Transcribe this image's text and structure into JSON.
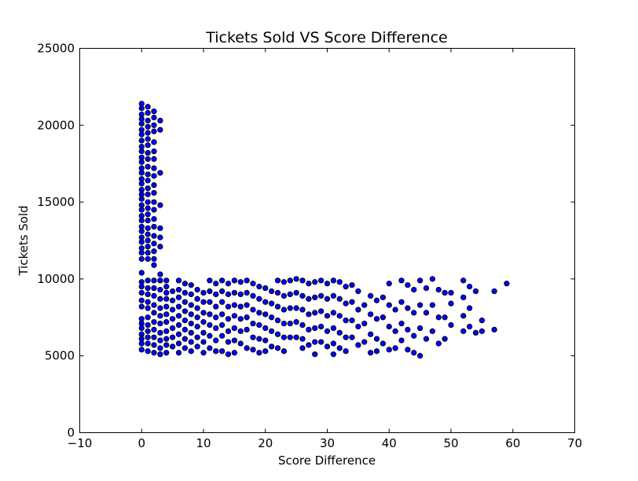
{
  "chart_data": {
    "type": "scatter",
    "title": "Tickets Sold VS Score Difference",
    "xlabel": "Score Difference",
    "ylabel": "Tickets Sold",
    "xlim": [
      -10,
      70
    ],
    "ylim": [
      0,
      25000
    ],
    "xticks": [
      -10,
      0,
      10,
      20,
      30,
      40,
      50,
      60,
      70
    ],
    "yticks": [
      0,
      5000,
      10000,
      15000,
      20000,
      25000
    ],
    "xtick_labels": [
      "−10",
      "0",
      "10",
      "20",
      "30",
      "40",
      "50",
      "60",
      "70"
    ],
    "ytick_labels": [
      "0",
      "5000",
      "10000",
      "15000",
      "20000",
      "25000"
    ],
    "grid": false,
    "marker_color": "#0000ff",
    "marker_edge": "#000000",
    "points": [
      [
        0,
        21400
      ],
      [
        0,
        21100
      ],
      [
        0,
        20700
      ],
      [
        0,
        20400
      ],
      [
        0,
        20100
      ],
      [
        0,
        19700
      ],
      [
        0,
        19400
      ],
      [
        0,
        19000
      ],
      [
        0,
        18600
      ],
      [
        0,
        18300
      ],
      [
        0,
        17900
      ],
      [
        0,
        17600
      ],
      [
        0,
        17200
      ],
      [
        0,
        16900
      ],
      [
        0,
        16500
      ],
      [
        0,
        16200
      ],
      [
        0,
        15800
      ],
      [
        0,
        15500
      ],
      [
        0,
        15200
      ],
      [
        0,
        14800
      ],
      [
        0,
        14500
      ],
      [
        0,
        14100
      ],
      [
        0,
        13800
      ],
      [
        0,
        13400
      ],
      [
        0,
        13100
      ],
      [
        0,
        12700
      ],
      [
        0,
        12400
      ],
      [
        0,
        12000
      ],
      [
        0,
        11700
      ],
      [
        0,
        11300
      ],
      [
        0,
        10400
      ],
      [
        0,
        9800
      ],
      [
        0,
        9500
      ],
      [
        0,
        9100
      ],
      [
        0,
        8600
      ],
      [
        0,
        8200
      ],
      [
        0,
        7400
      ],
      [
        0,
        7100
      ],
      [
        0,
        6800
      ],
      [
        0,
        6400
      ],
      [
        0,
        6100
      ],
      [
        0,
        5800
      ],
      [
        0,
        5400
      ],
      [
        1,
        21200
      ],
      [
        1,
        20800
      ],
      [
        1,
        20300
      ],
      [
        1,
        19900
      ],
      [
        1,
        19500
      ],
      [
        1,
        19100
      ],
      [
        1,
        18700
      ],
      [
        1,
        18200
      ],
      [
        1,
        17800
      ],
      [
        1,
        17300
      ],
      [
        1,
        16800
      ],
      [
        1,
        16400
      ],
      [
        1,
        15900
      ],
      [
        1,
        15500
      ],
      [
        1,
        15000
      ],
      [
        1,
        14600
      ],
      [
        1,
        14200
      ],
      [
        1,
        13800
      ],
      [
        1,
        13300
      ],
      [
        1,
        12900
      ],
      [
        1,
        12500
      ],
      [
        1,
        12100
      ],
      [
        1,
        11700
      ],
      [
        1,
        11300
      ],
      [
        1,
        9900
      ],
      [
        1,
        9400
      ],
      [
        1,
        9000
      ],
      [
        1,
        8500
      ],
      [
        1,
        8100
      ],
      [
        1,
        7500
      ],
      [
        1,
        7000
      ],
      [
        1,
        6600
      ],
      [
        1,
        6200
      ],
      [
        1,
        5800
      ],
      [
        1,
        5300
      ],
      [
        2,
        20900
      ],
      [
        2,
        20500
      ],
      [
        2,
        20000
      ],
      [
        2,
        19600
      ],
      [
        2,
        18900
      ],
      [
        2,
        18300
      ],
      [
        2,
        17800
      ],
      [
        2,
        17200
      ],
      [
        2,
        16700
      ],
      [
        2,
        16100
      ],
      [
        2,
        15600
      ],
      [
        2,
        15000
      ],
      [
        2,
        14500
      ],
      [
        2,
        13900
      ],
      [
        2,
        13400
      ],
      [
        2,
        12800
      ],
      [
        2,
        12300
      ],
      [
        2,
        11800
      ],
      [
        2,
        11300
      ],
      [
        2,
        10900
      ],
      [
        2,
        9900
      ],
      [
        2,
        9400
      ],
      [
        2,
        8900
      ],
      [
        2,
        8300
      ],
      [
        2,
        7800
      ],
      [
        2,
        7200
      ],
      [
        2,
        6700
      ],
      [
        2,
        6200
      ],
      [
        2,
        5700
      ],
      [
        2,
        5200
      ],
      [
        3,
        20300
      ],
      [
        3,
        19700
      ],
      [
        3,
        16900
      ],
      [
        3,
        14800
      ],
      [
        3,
        13300
      ],
      [
        3,
        12700
      ],
      [
        3,
        12100
      ],
      [
        3,
        10300
      ],
      [
        3,
        9900
      ],
      [
        3,
        9300
      ],
      [
        3,
        8700
      ],
      [
        3,
        8100
      ],
      [
        3,
        7600
      ],
      [
        3,
        7100
      ],
      [
        3,
        6500
      ],
      [
        3,
        6000
      ],
      [
        3,
        5500
      ],
      [
        3,
        5100
      ],
      [
        4,
        9900
      ],
      [
        4,
        9500
      ],
      [
        4,
        9100
      ],
      [
        4,
        8700
      ],
      [
        4,
        8200
      ],
      [
        4,
        7700
      ],
      [
        4,
        7200
      ],
      [
        4,
        6600
      ],
      [
        4,
        6100
      ],
      [
        4,
        5700
      ],
      [
        4,
        5200
      ],
      [
        5,
        9200
      ],
      [
        5,
        8600
      ],
      [
        5,
        8000
      ],
      [
        5,
        7400
      ],
      [
        5,
        6800
      ],
      [
        5,
        6200
      ],
      [
        5,
        5600
      ],
      [
        6,
        9900
      ],
      [
        6,
        9300
      ],
      [
        6,
        8800
      ],
      [
        6,
        8200
      ],
      [
        6,
        7600
      ],
      [
        6,
        7000
      ],
      [
        6,
        6400
      ],
      [
        6,
        5800
      ],
      [
        6,
        5200
      ],
      [
        7,
        9700
      ],
      [
        7,
        9100
      ],
      [
        7,
        8500
      ],
      [
        7,
        7900
      ],
      [
        7,
        7300
      ],
      [
        7,
        6700
      ],
      [
        7,
        6100
      ],
      [
        7,
        5500
      ],
      [
        8,
        9600
      ],
      [
        8,
        9000
      ],
      [
        8,
        8300
      ],
      [
        8,
        7700
      ],
      [
        8,
        7100
      ],
      [
        8,
        6500
      ],
      [
        8,
        5900
      ],
      [
        8,
        5300
      ],
      [
        9,
        9300
      ],
      [
        9,
        8700
      ],
      [
        9,
        8100
      ],
      [
        9,
        7500
      ],
      [
        9,
        6900
      ],
      [
        9,
        6200
      ],
      [
        9,
        5600
      ],
      [
        10,
        9100
      ],
      [
        10,
        8500
      ],
      [
        10,
        7800
      ],
      [
        10,
        7200
      ],
      [
        10,
        6500
      ],
      [
        10,
        5900
      ],
      [
        10,
        5200
      ],
      [
        11,
        9900
      ],
      [
        11,
        9200
      ],
      [
        11,
        8500
      ],
      [
        11,
        7700
      ],
      [
        11,
        7000
      ],
      [
        11,
        6300
      ],
      [
        11,
        5500
      ],
      [
        12,
        9700
      ],
      [
        12,
        9000
      ],
      [
        12,
        8200
      ],
      [
        12,
        7500
      ],
      [
        12,
        6800
      ],
      [
        12,
        6000
      ],
      [
        12,
        5300
      ],
      [
        13,
        9900
      ],
      [
        13,
        9200
      ],
      [
        13,
        8500
      ],
      [
        13,
        7700
      ],
      [
        13,
        7000
      ],
      [
        13,
        6300
      ],
      [
        13,
        5300
      ],
      [
        14,
        9700
      ],
      [
        14,
        9000
      ],
      [
        14,
        8200
      ],
      [
        14,
        7400
      ],
      [
        14,
        6600
      ],
      [
        14,
        5900
      ],
      [
        14,
        5100
      ],
      [
        15,
        9900
      ],
      [
        15,
        9100
      ],
      [
        15,
        8300
      ],
      [
        15,
        7600
      ],
      [
        15,
        6800
      ],
      [
        15,
        6000
      ],
      [
        15,
        5200
      ],
      [
        16,
        9800
      ],
      [
        16,
        9000
      ],
      [
        16,
        8200
      ],
      [
        16,
        7400
      ],
      [
        16,
        6600
      ],
      [
        16,
        5800
      ],
      [
        17,
        9900
      ],
      [
        17,
        9100
      ],
      [
        17,
        8300
      ],
      [
        17,
        7500
      ],
      [
        17,
        6700
      ],
      [
        17,
        5500
      ],
      [
        18,
        9700
      ],
      [
        18,
        8900
      ],
      [
        18,
        8000
      ],
      [
        18,
        7100
      ],
      [
        18,
        6200
      ],
      [
        18,
        5400
      ],
      [
        19,
        9500
      ],
      [
        19,
        8700
      ],
      [
        19,
        7800
      ],
      [
        19,
        7000
      ],
      [
        19,
        6100
      ],
      [
        19,
        5200
      ],
      [
        20,
        9400
      ],
      [
        20,
        8500
      ],
      [
        20,
        7700
      ],
      [
        20,
        6800
      ],
      [
        20,
        6000
      ],
      [
        20,
        5300
      ],
      [
        21,
        9200
      ],
      [
        21,
        8400
      ],
      [
        21,
        7500
      ],
      [
        21,
        6600
      ],
      [
        21,
        5600
      ],
      [
        22,
        9900
      ],
      [
        22,
        9100
      ],
      [
        22,
        8200
      ],
      [
        22,
        7300
      ],
      [
        22,
        6400
      ],
      [
        22,
        5500
      ],
      [
        23,
        9800
      ],
      [
        23,
        8900
      ],
      [
        23,
        8000
      ],
      [
        23,
        7100
      ],
      [
        23,
        6200
      ],
      [
        23,
        5300
      ],
      [
        24,
        9900
      ],
      [
        24,
        9000
      ],
      [
        24,
        8100
      ],
      [
        24,
        7100
      ],
      [
        24,
        6200
      ],
      [
        25,
        10000
      ],
      [
        25,
        9100
      ],
      [
        25,
        8100
      ],
      [
        25,
        7200
      ],
      [
        25,
        6200
      ],
      [
        26,
        9900
      ],
      [
        26,
        8900
      ],
      [
        26,
        8000
      ],
      [
        26,
        7000
      ],
      [
        26,
        6100
      ],
      [
        26,
        5500
      ],
      [
        27,
        9700
      ],
      [
        27,
        8700
      ],
      [
        27,
        7700
      ],
      [
        27,
        6700
      ],
      [
        27,
        5700
      ],
      [
        28,
        9800
      ],
      [
        28,
        8800
      ],
      [
        28,
        7800
      ],
      [
        28,
        6800
      ],
      [
        28,
        5900
      ],
      [
        28,
        5100
      ],
      [
        29,
        9900
      ],
      [
        29,
        8900
      ],
      [
        29,
        7900
      ],
      [
        29,
        6900
      ],
      [
        29,
        5900
      ],
      [
        30,
        9700
      ],
      [
        30,
        8700
      ],
      [
        30,
        7600
      ],
      [
        30,
        6600
      ],
      [
        30,
        5600
      ],
      [
        31,
        9900
      ],
      [
        31,
        8900
      ],
      [
        31,
        7800
      ],
      [
        31,
        6800
      ],
      [
        31,
        5800
      ],
      [
        31,
        5100
      ],
      [
        32,
        9800
      ],
      [
        32,
        8700
      ],
      [
        32,
        7600
      ],
      [
        32,
        6500
      ],
      [
        32,
        5500
      ],
      [
        33,
        9500
      ],
      [
        33,
        8400
      ],
      [
        33,
        7300
      ],
      [
        33,
        6200
      ],
      [
        33,
        5300
      ],
      [
        34,
        9600
      ],
      [
        34,
        8500
      ],
      [
        34,
        7300
      ],
      [
        34,
        6200
      ],
      [
        35,
        9200
      ],
      [
        35,
        8000
      ],
      [
        35,
        6900
      ],
      [
        35,
        5700
      ],
      [
        36,
        8300
      ],
      [
        36,
        7100
      ],
      [
        36,
        5900
      ],
      [
        37,
        8900
      ],
      [
        37,
        7700
      ],
      [
        37,
        6400
      ],
      [
        37,
        5200
      ],
      [
        38,
        8600
      ],
      [
        38,
        7400
      ],
      [
        38,
        6100
      ],
      [
        38,
        5300
      ],
      [
        39,
        8800
      ],
      [
        39,
        7500
      ],
      [
        39,
        5800
      ],
      [
        40,
        9700
      ],
      [
        40,
        8300
      ],
      [
        40,
        6900
      ],
      [
        40,
        5400
      ],
      [
        41,
        8000
      ],
      [
        41,
        6600
      ],
      [
        41,
        5500
      ],
      [
        42,
        9900
      ],
      [
        42,
        8500
      ],
      [
        42,
        7100
      ],
      [
        42,
        6000
      ],
      [
        43,
        9600
      ],
      [
        43,
        8100
      ],
      [
        43,
        6700
      ],
      [
        43,
        5400
      ],
      [
        44,
        9300
      ],
      [
        44,
        7800
      ],
      [
        44,
        6300
      ],
      [
        44,
        5200
      ],
      [
        45,
        9900
      ],
      [
        45,
        8300
      ],
      [
        45,
        6800
      ],
      [
        45,
        5000
      ],
      [
        46,
        9400
      ],
      [
        46,
        7800
      ],
      [
        46,
        6100
      ],
      [
        47,
        10000
      ],
      [
        47,
        8300
      ],
      [
        47,
        6600
      ],
      [
        48,
        9300
      ],
      [
        48,
        7500
      ],
      [
        48,
        5800
      ],
      [
        49,
        9100
      ],
      [
        49,
        7500
      ],
      [
        49,
        6100
      ],
      [
        50,
        9100
      ],
      [
        50,
        8400
      ],
      [
        50,
        7000
      ],
      [
        52,
        9900
      ],
      [
        52,
        8800
      ],
      [
        52,
        7600
      ],
      [
        52,
        6600
      ],
      [
        53,
        9500
      ],
      [
        53,
        8100
      ],
      [
        53,
        6900
      ],
      [
        54,
        9200
      ],
      [
        54,
        6500
      ],
      [
        55,
        7300
      ],
      [
        55,
        6600
      ],
      [
        57,
        9200
      ],
      [
        57,
        6700
      ],
      [
        59,
        9700
      ]
    ]
  }
}
